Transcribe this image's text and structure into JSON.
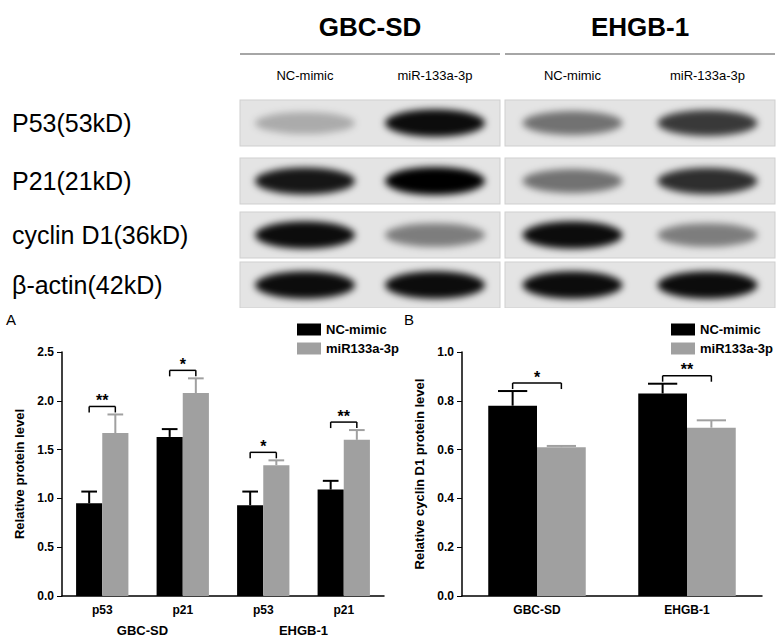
{
  "blot": {
    "groups": [
      {
        "label": "GBC-SD",
        "lanes": [
          "NC-mimic",
          "miR-133a-3p"
        ]
      },
      {
        "label": "EHGB-1",
        "lanes": [
          "NC-mimic",
          "miR-133a-3p"
        ]
      }
    ],
    "rows": [
      {
        "label": "P53(53kD)",
        "intensity": [
          0.25,
          0.95,
          0.5,
          0.75
        ]
      },
      {
        "label": "P21(21kD)",
        "intensity": [
          0.9,
          1.0,
          0.5,
          0.8
        ]
      },
      {
        "label": "cyclin D1(36kD)",
        "intensity": [
          0.95,
          0.45,
          0.95,
          0.45
        ]
      },
      {
        "label": "β-actin(42kD)",
        "intensity": [
          0.95,
          0.95,
          0.95,
          0.95
        ]
      }
    ]
  },
  "chart_data": [
    {
      "type": "bar",
      "panel": "A",
      "y_label": "Relative protein level",
      "categories": [
        "p53",
        "p21",
        "p53",
        "p21"
      ],
      "groups": [
        "GBC-SD",
        "EHGB-1"
      ],
      "series": [
        {
          "name": "NC-mimic",
          "color": "#000000",
          "values": [
            0.95,
            1.63,
            0.93,
            1.09
          ],
          "errors": [
            0.12,
            0.08,
            0.14,
            0.09
          ]
        },
        {
          "name": "miR133a-3p",
          "color": "#a0a0a0",
          "values": [
            1.67,
            2.08,
            1.34,
            1.6
          ],
          "errors": [
            0.19,
            0.15,
            0.05,
            0.1
          ]
        }
      ],
      "significance": [
        "**",
        "*",
        "*",
        "**"
      ],
      "ylim": [
        0,
        2.5
      ],
      "yticks": [
        {
          "value": 0,
          "label": "0.0"
        },
        0.5,
        {
          "value": 1,
          "label": "1.0"
        },
        1.5,
        {
          "value": 2,
          "label": "2.0"
        },
        2.5
      ],
      "grid": false,
      "legend": "upper right"
    },
    {
      "type": "bar",
      "panel": "B",
      "y_label": "Relative cyclin D1 protein level",
      "categories": [
        "GBC-SD",
        "EHGB-1"
      ],
      "series": [
        {
          "name": "NC-mimic",
          "color": "#000000",
          "values": [
            0.78,
            0.83
          ],
          "errors": [
            0.06,
            0.04
          ]
        },
        {
          "name": "miR133a-3p",
          "color": "#a0a0a0",
          "values": [
            0.61,
            0.69
          ],
          "errors": [
            0.005,
            0.03
          ]
        }
      ],
      "significance": [
        "*",
        "**"
      ],
      "ylim": [
        0,
        1
      ],
      "yticks": [
        {
          "value": 0,
          "label": "0.0"
        },
        0.2,
        0.4,
        0.6,
        0.8,
        {
          "value": 1,
          "label": "1.0"
        }
      ],
      "grid": false,
      "legend": "upper right"
    }
  ]
}
